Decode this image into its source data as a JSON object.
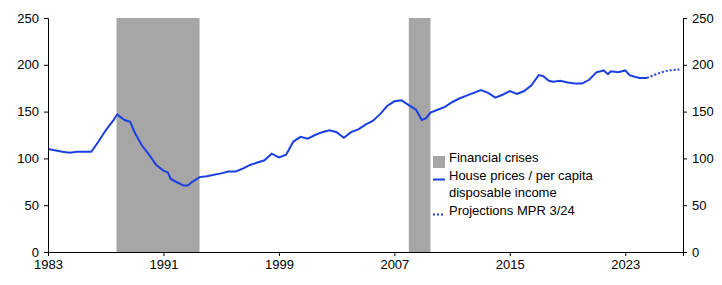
{
  "chart_data": {
    "type": "line",
    "xlim": [
      1983,
      2027
    ],
    "xticks": [
      1983,
      1991,
      1999,
      2007,
      2015,
      2023
    ],
    "ylim": [
      0,
      250
    ],
    "yticks": [
      0,
      50,
      100,
      150,
      200,
      250
    ],
    "y2lim": [
      0,
      250
    ],
    "y2ticks": [
      0,
      50,
      100,
      150,
      200,
      250
    ],
    "grid": false,
    "legend": "lower right",
    "series": [
      {
        "name": "Financial crises",
        "type": "span",
        "color": "#a6a6a6",
        "x_start": [
          1987.75,
          2008.0
        ],
        "x_end": [
          1993.5,
          2009.5
        ]
      },
      {
        "name": "House prices / per capita disposable income",
        "type": "line",
        "color": "#1b3fe0",
        "line_style": "solid",
        "x": [
          1983,
          1984,
          1984.5,
          1985,
          1986,
          1986.5,
          1987,
          1987.5,
          1987.8,
          1988.3,
          1988.7,
          1989,
          1989.5,
          1990,
          1990.5,
          1991,
          1991.3,
          1991.5,
          1992,
          1992.4,
          1992.7,
          1993,
          1993.5,
          1994,
          1995,
          1995.5,
          1996,
          1996.5,
          1997,
          1998,
          1998.5,
          1999,
          1999.5,
          2000,
          2000.5,
          2001,
          2001.5,
          2002,
          2002.5,
          2003,
          2003.5,
          2004,
          2004.5,
          2005,
          2005.5,
          2006,
          2006.5,
          2007,
          2007.5,
          2008,
          2008.5,
          2008.9,
          2009.2,
          2009.5,
          2010,
          2010.5,
          2011,
          2011.5,
          2012,
          2012.5,
          2013,
          2013.5,
          2014,
          2014.5,
          2015,
          2015.5,
          2016,
          2016.5,
          2017,
          2017.3,
          2017.7,
          2018,
          2018.5,
          2019,
          2019.5,
          2020,
          2020.5,
          2021,
          2021.5,
          2021.8,
          2022,
          2022.5,
          2023,
          2023.3,
          2023.7,
          2024,
          2024.5
        ],
        "values": [
          110,
          107,
          106,
          107,
          107,
          118,
          130,
          140,
          147,
          141,
          139,
          128,
          114,
          104,
          93,
          87,
          85,
          78,
          74,
          71,
          71,
          75,
          80,
          81,
          84,
          86,
          86,
          89,
          93,
          98,
          105,
          101,
          104,
          118,
          123,
          121,
          125,
          128,
          130,
          128,
          122,
          128,
          131,
          136,
          140,
          147,
          156,
          161,
          162,
          157,
          152,
          141,
          143,
          149,
          152,
          155,
          160,
          164,
          167,
          170,
          173,
          170,
          165,
          168,
          172,
          169,
          172,
          178,
          189,
          188,
          183,
          182,
          183,
          181,
          180,
          180,
          184,
          192,
          194,
          190,
          193,
          192,
          194,
          189,
          187,
          186,
          186
        ]
      },
      {
        "name": "Projections MPR 3/24",
        "type": "line",
        "color": "#1b3fe0",
        "line_style": "dotted",
        "x": [
          2024.5,
          2025,
          2025.5,
          2026,
          2026.75
        ],
        "values": [
          186,
          189,
          192,
          194,
          195
        ]
      }
    ]
  }
}
